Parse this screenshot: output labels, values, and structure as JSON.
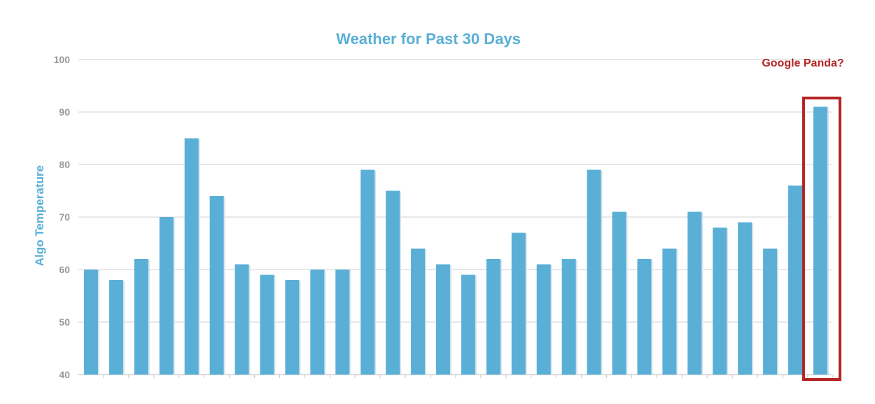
{
  "chart_data": {
    "type": "bar",
    "title": "Weather for Past 30 Days",
    "xlabel": "",
    "ylabel": "Algo Temperature",
    "ylim": [
      40,
      100
    ],
    "yticks": [
      "40",
      "50",
      "60",
      "70",
      "80",
      "90",
      "100"
    ],
    "grid": true,
    "legend": "none",
    "values": [
      60,
      58,
      62,
      70,
      85,
      74,
      61,
      59,
      58,
      60,
      60,
      79,
      75,
      64,
      61,
      59,
      62,
      67,
      61,
      62,
      79,
      71,
      62,
      64,
      71,
      68,
      69,
      64,
      76,
      91
    ],
    "annotation": {
      "text": "Google Panda?",
      "target_index": 29
    },
    "colors": {
      "bar": "#5aafd6",
      "title": "#5aafd6",
      "ylabel": "#5aafd6",
      "annotation": "#b42424",
      "grid": "#d0d0d0",
      "tick": "#9a9a9a"
    }
  }
}
